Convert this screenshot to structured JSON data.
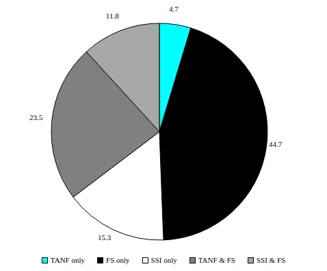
{
  "chart_data": {
    "type": "pie",
    "categories": [
      "TANF only",
      "FS only",
      "SSI only",
      "TANF & FS",
      "SSI & FS"
    ],
    "values": [
      4.7,
      44.7,
      15.3,
      23.5,
      11.8
    ],
    "colors": [
      "#00ffff",
      "#000000",
      "#ffffff",
      "#808080",
      "#a8a8a8"
    ],
    "data_labels": true,
    "legend": "bottom"
  }
}
